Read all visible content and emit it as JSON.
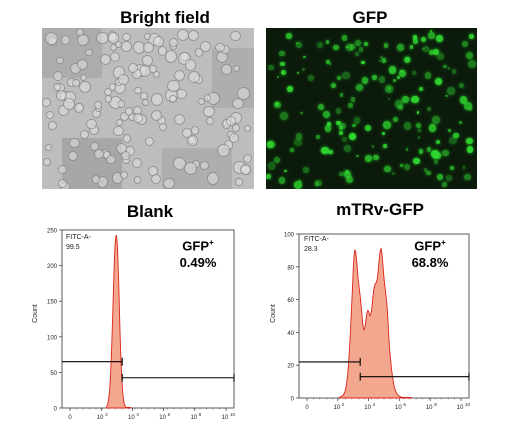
{
  "images": {
    "bright_field_title": "Bright field",
    "gfp_title": "GFP"
  },
  "plots": [
    {
      "title": "Blank",
      "gate_name": "FITC-A-",
      "gate_percent": "99.5",
      "marker": "GFP",
      "marker_sup": "+",
      "positive_percent": "0.49%",
      "ylabel": "Count",
      "y_ticks": [
        "0",
        "50",
        "100",
        "150",
        "200",
        "250"
      ],
      "x_ticks": [
        "0",
        "10",
        "2",
        "10",
        "4",
        "10",
        "6",
        "10",
        "8",
        "10",
        "10"
      ],
      "fill_color": "#f4a78f",
      "line_color": "#d9231a"
    },
    {
      "title": "mTRv-GFP",
      "gate_name": "FITC-A-",
      "gate_percent": "28.3",
      "marker": "GFP",
      "marker_sup": "+",
      "positive_percent": "68.8%",
      "ylabel": "Count",
      "y_ticks": [
        "0",
        "20",
        "40",
        "60",
        "80",
        "100"
      ],
      "x_ticks": [
        "0",
        "10",
        "2",
        "10",
        "4",
        "10",
        "6",
        "10",
        "8",
        "10",
        "10"
      ],
      "fill_color": "#f4a78f",
      "line_color": "#d9231a"
    }
  ]
}
